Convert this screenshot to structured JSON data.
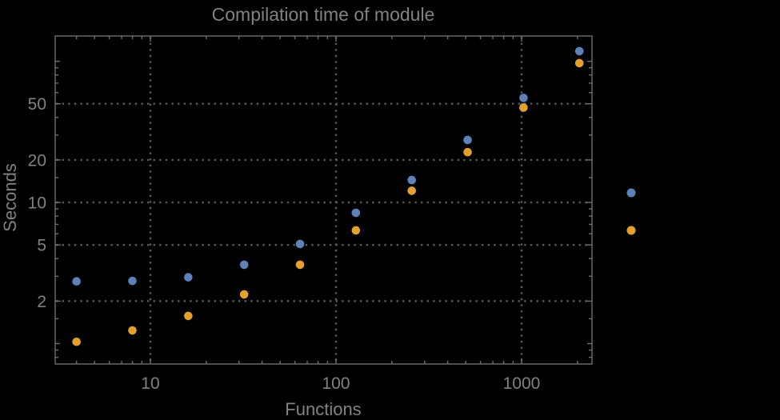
{
  "title": "Compilation time of module",
  "colors": {
    "background": "#000000",
    "frame": "#6e6e6e",
    "grid": "#5a5a5a",
    "text": "#828282",
    "series_blue": "#5e81b8",
    "series_orange": "#e3a02f"
  },
  "chart_data": {
    "type": "scatter",
    "title": "Compilation time of module",
    "xlabel": "Functions",
    "ylabel": "Seconds",
    "x_scale": "log",
    "y_scale": "log",
    "grid": "dotted",
    "x": [
      4,
      8,
      16,
      32,
      64,
      128,
      256,
      512,
      1024,
      2048
    ],
    "series": [
      {
        "name": "blue-series",
        "color": "#5e81b8",
        "values": [
          2.76,
          2.78,
          2.95,
          3.62,
          5.08,
          8.44,
          14.4,
          27.7,
          55,
          118
        ]
      },
      {
        "name": "orange-series",
        "color": "#e3a02f",
        "values": [
          1.03,
          1.24,
          1.57,
          2.23,
          3.62,
          6.34,
          12.1,
          22.7,
          47,
          97
        ]
      }
    ],
    "x_ticks": [
      10,
      100,
      1000
    ],
    "x_tick_labels": [
      "10",
      "100",
      "1000"
    ],
    "x_minor_ticks": [
      4,
      5,
      6,
      7,
      8,
      9,
      20,
      30,
      40,
      50,
      60,
      70,
      80,
      90,
      200,
      300,
      400,
      500,
      600,
      700,
      800,
      900,
      2000
    ],
    "y_ticks": [
      2,
      5,
      10,
      20,
      50
    ],
    "y_tick_labels": [
      "2",
      "5",
      "10",
      "20",
      "50"
    ],
    "y_medium_ticks": [
      1,
      100
    ],
    "y_minor_ticks": [
      0.8,
      0.9,
      1.5,
      3,
      4,
      6,
      7,
      8,
      9,
      15,
      30,
      40,
      60,
      70,
      80,
      90
    ],
    "xlim": [
      3.07,
      2395
    ],
    "ylim": [
      0.717,
      151
    ],
    "legend": {
      "position": "right-outside",
      "labels_visible": false,
      "markers": [
        {
          "series": "blue-series",
          "color": "#5e81b8"
        },
        {
          "series": "orange-series",
          "color": "#e3a02f"
        }
      ]
    }
  }
}
